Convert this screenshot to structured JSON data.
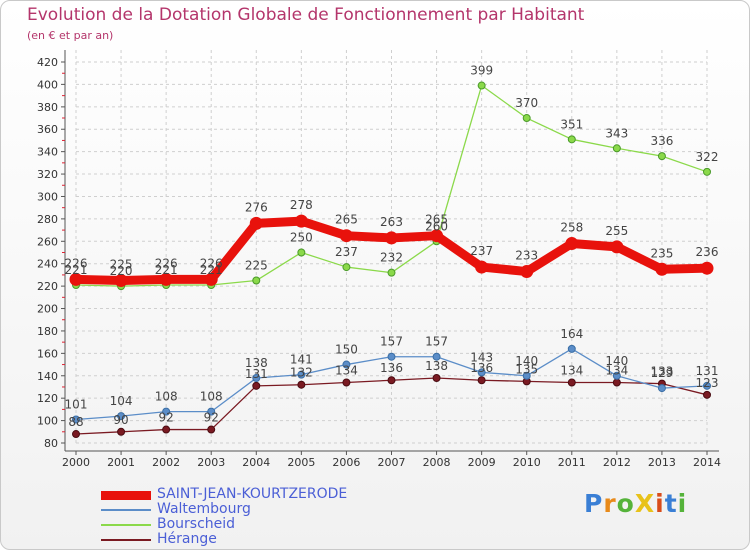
{
  "chart_data": {
    "type": "line",
    "title": "Evolution de la Dotation Globale de Fonctionnement par Habitant",
    "subtitle": "(en € et par an)",
    "xlabel": "",
    "ylabel": "",
    "ylim": [
      80,
      420
    ],
    "yticks": [
      80,
      100,
      120,
      140,
      160,
      180,
      200,
      220,
      240,
      260,
      280,
      300,
      320,
      340,
      360,
      380,
      400,
      420
    ],
    "categories": [
      "2000",
      "2001",
      "2002",
      "2003",
      "2004",
      "2005",
      "2006",
      "2007",
      "2008",
      "2009",
      "2010",
      "2011",
      "2012",
      "2013",
      "2014"
    ],
    "legend_position": "bottom-left",
    "series": [
      {
        "name": "SAINT-JEAN-KOURTZERODE",
        "color": "#e8120c",
        "values": [
          226,
          225,
          226,
          226,
          276,
          278,
          265,
          263,
          265,
          237,
          233,
          258,
          255,
          235,
          236
        ]
      },
      {
        "name": "Waltembourg",
        "color": "#5b8dc8",
        "values": [
          101,
          104,
          108,
          108,
          138,
          141,
          150,
          157,
          157,
          143,
          140,
          164,
          140,
          129,
          131
        ]
      },
      {
        "name": "Bourscheid",
        "color": "#8bd94a",
        "values": [
          221,
          220,
          221,
          221,
          225,
          250,
          237,
          232,
          260,
          399,
          370,
          351,
          343,
          336,
          322
        ]
      },
      {
        "name": "Hérange",
        "color": "#7a1a22",
        "values": [
          88,
          90,
          92,
          92,
          131,
          132,
          134,
          136,
          138,
          136,
          135,
          134,
          134,
          133,
          123
        ]
      }
    ]
  },
  "logo": {
    "text": "ProXiti",
    "letters": [
      "P",
      "r",
      "o",
      "X",
      "i",
      "t",
      "i"
    ],
    "colors": [
      "#3a7fd5",
      "#e88a1a",
      "#55b33a",
      "#e8c21a",
      "#d94c1a",
      "#3a7fd5",
      "#55b33a"
    ]
  }
}
